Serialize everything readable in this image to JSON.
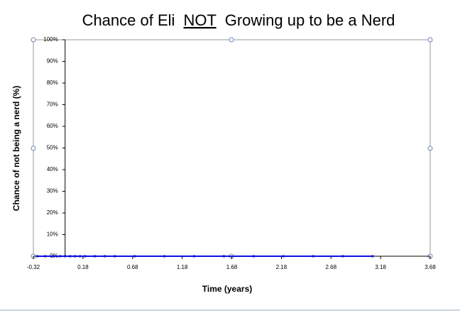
{
  "chart_data": {
    "type": "line",
    "title": [
      "Chance of Eli",
      "NOT",
      "Growing up to be a Nerd"
    ],
    "x_label": "Time (years)",
    "y_label": "Chance of not being a nerd (%)",
    "xlim": [
      -0.32,
      3.68
    ],
    "xticks": [
      -0.32,
      0.18,
      0.68,
      1.18,
      1.68,
      2.18,
      2.68,
      3.18,
      3.68
    ],
    "ylim": [
      0,
      100
    ],
    "yticks": [
      {
        "value": 0,
        "label": "0%"
      },
      {
        "value": 10,
        "label": "10%"
      },
      {
        "value": 20,
        "label": "20%"
      },
      {
        "value": 30,
        "label": "30%"
      },
      {
        "value": 40,
        "label": "40%"
      },
      {
        "value": 50,
        "label": "50%"
      },
      {
        "value": 60,
        "label": "60%"
      },
      {
        "value": 70,
        "label": "70%"
      },
      {
        "value": 80,
        "label": "80%"
      },
      {
        "value": 90,
        "label": "90%"
      },
      {
        "value": 100,
        "label": "100%"
      }
    ],
    "x": [
      -0.28,
      -0.2,
      -0.12,
      -0.05,
      0,
      0.05,
      0.1,
      0.15,
      0.2,
      0.3,
      0.4,
      0.5,
      0.7,
      1.0,
      1.3,
      1.6,
      1.9,
      2.2,
      2.5,
      2.8,
      3.1
    ],
    "series": [
      {
        "color": "#1010e0",
        "values": [
          0,
          0,
          0,
          0,
          0,
          0,
          0,
          0,
          0,
          0,
          0,
          0,
          0,
          0,
          0,
          0,
          0,
          0,
          0,
          0,
          0
        ]
      }
    ]
  }
}
